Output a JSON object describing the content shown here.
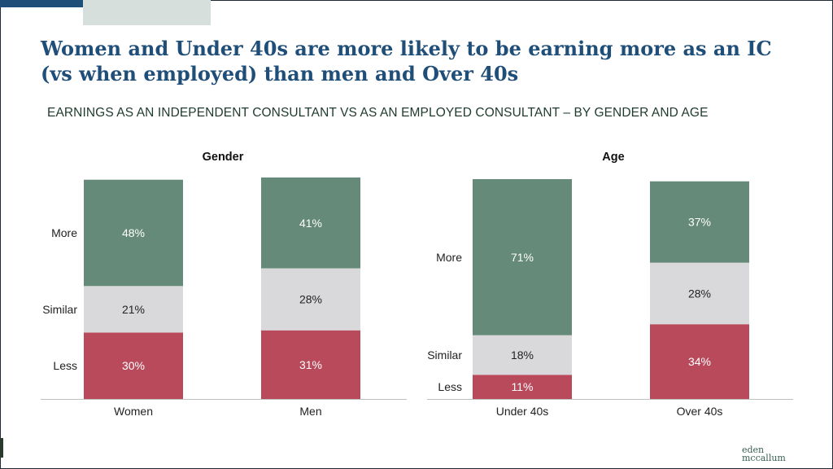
{
  "slide": {
    "title": "Women and Under 40s are more likely to be earning more as an IC (vs when employed) than men and Over 40s",
    "subtitle": "EARNINGS AS AN INDEPENDENT CONSULTANT VS AS AN EMPLOYED CONSULTANT – BY GENDER AND AGE",
    "logo_line1": "eden",
    "logo_line2": "mccallum"
  },
  "colors": {
    "more": "#658a79",
    "similar": "#d9d9db",
    "less": "#b84a5c",
    "title": "#1f4e79"
  },
  "chart_data": [
    {
      "type": "bar",
      "stacked": true,
      "title": "Gender",
      "categories": [
        "Women",
        "Men"
      ],
      "series": [
        {
          "name": "Less",
          "values": [
            30,
            31
          ],
          "labels": [
            "30%",
            "31%"
          ]
        },
        {
          "name": "Similar",
          "values": [
            21,
            28
          ],
          "labels": [
            "21%",
            "28%"
          ]
        },
        {
          "name": "More",
          "values": [
            48,
            41
          ],
          "labels": [
            "48%",
            "41%"
          ]
        }
      ],
      "row_labels_for": "Women",
      "ylim": [
        0,
        100
      ]
    },
    {
      "type": "bar",
      "stacked": true,
      "title": "Age",
      "categories": [
        "Under 40s",
        "Over 40s"
      ],
      "series": [
        {
          "name": "Less",
          "values": [
            11,
            34
          ],
          "labels": [
            "11%",
            "34%"
          ]
        },
        {
          "name": "Similar",
          "values": [
            18,
            28
          ],
          "labels": [
            "18%",
            "28%"
          ]
        },
        {
          "name": "More",
          "values": [
            71,
            37
          ],
          "labels": [
            "71%",
            "37%"
          ]
        }
      ],
      "row_labels_for": "Under 40s",
      "ylim": [
        0,
        100
      ]
    }
  ]
}
